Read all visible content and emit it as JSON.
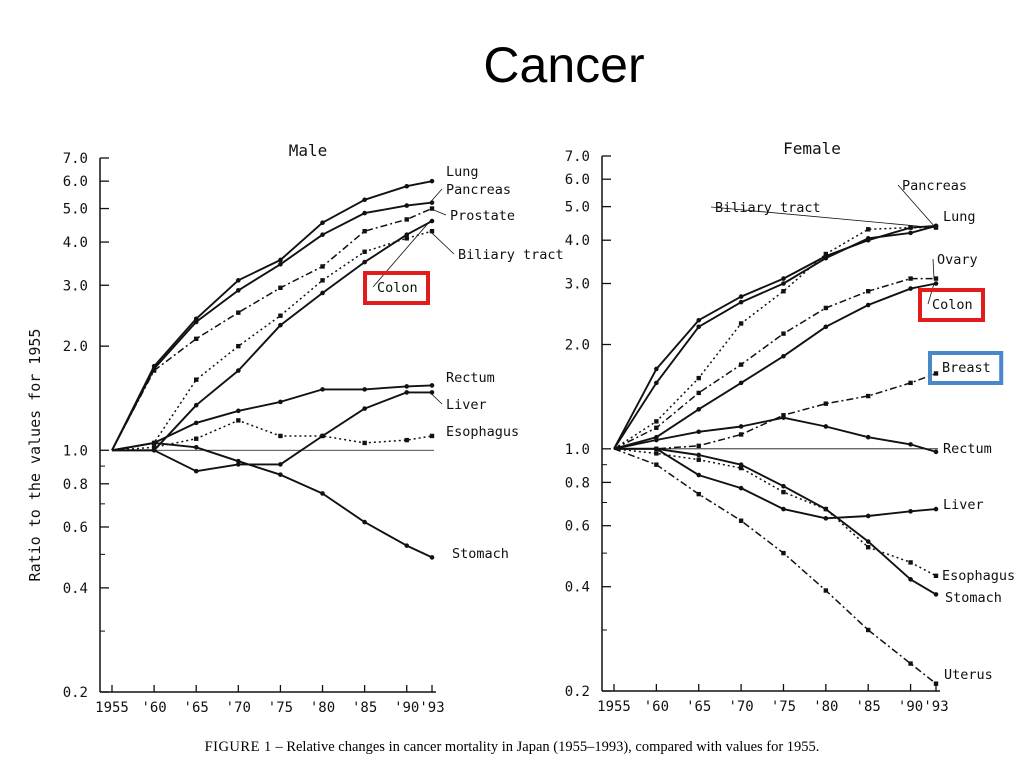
{
  "slide_title": "Cancer",
  "caption": {
    "label": "FIGURE 1",
    "text": " – Relative changes in cancer mortality in Japan (1955–1993), compared with values for 1955."
  },
  "colors": {
    "highlight_red": "#e21b1b",
    "highlight_blue": "#4a86c8",
    "ink": "#111111"
  },
  "chart_data": [
    {
      "type": "line",
      "title": "Male",
      "ylabel": "Ratio to the values for 1955",
      "yscale": "log",
      "ylim": [
        0.2,
        7.0
      ],
      "yticks": [
        0.2,
        0.4,
        0.6,
        0.8,
        1.0,
        2.0,
        3.0,
        4.0,
        5.0,
        6.0,
        7.0
      ],
      "ytick_labels": [
        "0.2",
        "0.4",
        "0.6",
        "0.8",
        "1.0",
        "2.0",
        "3.0",
        "4.0",
        "5.0",
        "6.0",
        "7.0"
      ],
      "x": [
        1955,
        1960,
        1965,
        1970,
        1975,
        1980,
        1985,
        1990,
        1993
      ],
      "xtick_labels": [
        "1955",
        "'60",
        "'65",
        "'70",
        "'75",
        "'80",
        "'85",
        "'90",
        "'93"
      ],
      "reference_line": 1.0,
      "highlight": [
        {
          "series": "Colon",
          "color": "red"
        }
      ],
      "series": [
        {
          "name": "Lung",
          "style": "solid",
          "values": [
            1.0,
            1.75,
            2.4,
            3.1,
            3.55,
            4.55,
            5.3,
            5.8,
            6.0
          ]
        },
        {
          "name": "Pancreas",
          "style": "solid",
          "values": [
            1.0,
            1.72,
            2.35,
            2.9,
            3.45,
            4.2,
            4.85,
            5.1,
            5.2
          ]
        },
        {
          "name": "Prostate",
          "style": "dashdot",
          "values": [
            1.0,
            1.7,
            2.1,
            2.5,
            2.95,
            3.4,
            4.3,
            4.65,
            5.0
          ]
        },
        {
          "name": "Biliary tract",
          "style": "dotted",
          "values": [
            1.0,
            1.05,
            1.6,
            2.0,
            2.45,
            3.1,
            3.75,
            4.1,
            4.3
          ]
        },
        {
          "name": "Colon",
          "style": "solid",
          "values": [
            1.0,
            1.0,
            1.35,
            1.7,
            2.3,
            2.85,
            3.5,
            4.2,
            4.6
          ]
        },
        {
          "name": "Rectum",
          "style": "solid",
          "values": [
            1.0,
            1.05,
            1.2,
            1.3,
            1.38,
            1.5,
            1.5,
            1.53,
            1.54
          ]
        },
        {
          "name": "Liver",
          "style": "solid",
          "values": [
            1.0,
            1.0,
            0.87,
            0.91,
            0.91,
            1.1,
            1.32,
            1.47,
            1.47
          ]
        },
        {
          "name": "Esophagus",
          "style": "dotted",
          "values": [
            1.0,
            1.02,
            1.08,
            1.22,
            1.1,
            1.1,
            1.05,
            1.07,
            1.1
          ]
        },
        {
          "name": "Stomach",
          "style": "solid",
          "values": [
            1.0,
            1.05,
            1.02,
            0.93,
            0.85,
            0.75,
            0.62,
            0.53,
            0.49
          ]
        }
      ]
    },
    {
      "type": "line",
      "title": "Female",
      "yscale": "log",
      "ylim": [
        0.2,
        7.0
      ],
      "yticks": [
        0.2,
        0.4,
        0.6,
        0.8,
        1.0,
        2.0,
        3.0,
        4.0,
        5.0,
        6.0,
        7.0
      ],
      "ytick_labels": [
        "0.2",
        "0.4",
        "0.6",
        "0.8",
        "1.0",
        "2.0",
        "3.0",
        "4.0",
        "5.0",
        "6.0",
        "7.0"
      ],
      "x": [
        1955,
        1960,
        1965,
        1970,
        1975,
        1980,
        1985,
        1990,
        1993
      ],
      "xtick_labels": [
        "1955",
        "'60",
        "'65",
        "'70",
        "'75",
        "'80",
        "'85",
        "'90",
        "'93"
      ],
      "reference_line": 1.0,
      "highlight": [
        {
          "series": "Colon",
          "color": "red"
        },
        {
          "series": "Breast",
          "color": "blue"
        }
      ],
      "series": [
        {
          "name": "Pancreas",
          "style": "solid",
          "values": [
            1.0,
            1.7,
            2.35,
            2.75,
            3.1,
            3.6,
            4.0,
            4.35,
            4.4
          ]
        },
        {
          "name": "Lung",
          "style": "solid",
          "values": [
            1.0,
            1.55,
            2.25,
            2.65,
            3.0,
            3.55,
            4.05,
            4.2,
            4.4
          ]
        },
        {
          "name": "Biliary tract",
          "style": "dotted",
          "values": [
            1.0,
            1.2,
            1.6,
            2.3,
            2.85,
            3.65,
            4.3,
            4.35,
            4.35
          ]
        },
        {
          "name": "Ovary",
          "style": "dashdot",
          "values": [
            1.0,
            1.15,
            1.45,
            1.75,
            2.15,
            2.55,
            2.85,
            3.1,
            3.1
          ]
        },
        {
          "name": "Colon",
          "style": "solid",
          "values": [
            1.0,
            1.08,
            1.3,
            1.55,
            1.85,
            2.25,
            2.6,
            2.9,
            3.0
          ]
        },
        {
          "name": "Breast",
          "style": "dashdot",
          "values": [
            1.0,
            1.0,
            1.02,
            1.1,
            1.25,
            1.35,
            1.42,
            1.55,
            1.65
          ]
        },
        {
          "name": "Rectum",
          "style": "solid",
          "values": [
            1.0,
            1.06,
            1.12,
            1.16,
            1.23,
            1.16,
            1.08,
            1.03,
            0.98
          ]
        },
        {
          "name": "Liver",
          "style": "solid",
          "values": [
            1.0,
            1.0,
            0.84,
            0.77,
            0.67,
            0.63,
            0.64,
            0.66,
            0.67
          ]
        },
        {
          "name": "Esophagus",
          "style": "dotted",
          "values": [
            1.0,
            0.97,
            0.93,
            0.88,
            0.75,
            0.67,
            0.52,
            0.47,
            0.43
          ]
        },
        {
          "name": "Stomach",
          "style": "solid",
          "values": [
            1.0,
            1.0,
            0.96,
            0.9,
            0.78,
            0.67,
            0.54,
            0.42,
            0.38
          ]
        },
        {
          "name": "Uterus",
          "style": "dashdot",
          "values": [
            1.0,
            0.9,
            0.74,
            0.62,
            0.5,
            0.39,
            0.3,
            0.24,
            0.21
          ]
        }
      ]
    }
  ]
}
